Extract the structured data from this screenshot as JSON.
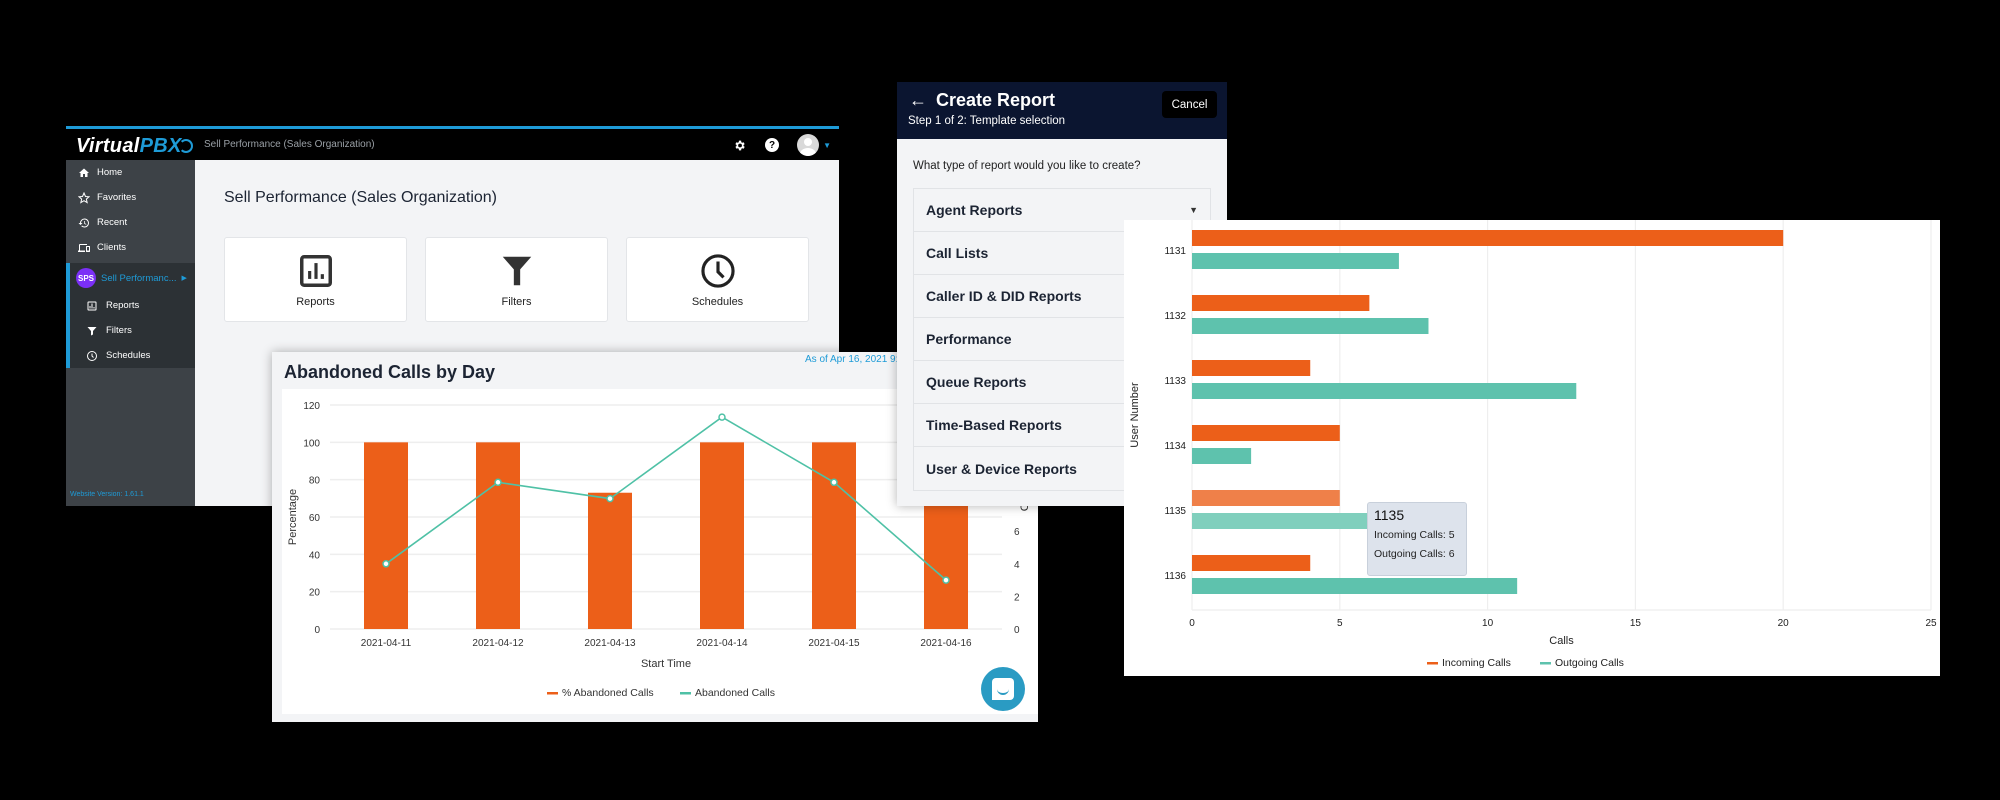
{
  "app": {
    "logo_text_1": "Virtual",
    "logo_text_2": "PBX",
    "topbar_title": "Sell Performance (Sales Organization)",
    "icons": [
      "gear-icon",
      "help-icon",
      "avatar",
      "caret-down-icon"
    ],
    "accent_color": "#1e9bd7",
    "sidebar": {
      "items": [
        {
          "label": "Home",
          "icon": "home-icon"
        },
        {
          "label": "Favorites",
          "icon": "star-icon"
        },
        {
          "label": "Recent",
          "icon": "history-icon"
        },
        {
          "label": "Clients",
          "icon": "devices-icon"
        }
      ],
      "org": {
        "badge": "SPS",
        "label": "Sell Performanc...",
        "badge_color": "#7b2ff7"
      },
      "sub_items": [
        {
          "label": "Reports",
          "icon": "bar-chart-icon"
        },
        {
          "label": "Filters",
          "icon": "filter-icon"
        },
        {
          "label": "Schedules",
          "icon": "clock-icon"
        }
      ],
      "version": "Website Version: 1.61.1"
    },
    "main": {
      "title": "Sell Performance (Sales Organization)",
      "tiles": [
        {
          "label": "Reports",
          "icon": "bar-chart-icon"
        },
        {
          "label": "Filters",
          "icon": "filter-icon"
        },
        {
          "label": "Schedules",
          "icon": "clock-icon"
        }
      ]
    }
  },
  "abandoned": {
    "title": "Abandoned Calls by Day",
    "as_of": "As of Apr 16, 2021 9:5"
  },
  "create_report": {
    "title": "Create Report",
    "step": "Step 1 of 2: Template selection",
    "cancel_label": "Cancel",
    "question": "What type of report would you like to create?",
    "items": [
      "Agent Reports",
      "Call Lists",
      "Caller ID & DID Reports",
      "Performance",
      "Queue Reports",
      "Time-Based Reports",
      "User & Device Reports"
    ]
  },
  "user_chart": {
    "tooltip": {
      "title": "1135",
      "incoming": "Incoming Calls: 5",
      "outgoing": "Outgoing Calls: 6"
    }
  },
  "chart_data": [
    {
      "type": "bar",
      "title": "Abandoned Calls by Day",
      "categories": [
        "2021-04-11",
        "2021-04-12",
        "2021-04-13",
        "2021-04-14",
        "2021-04-15",
        "2021-04-16"
      ],
      "series": [
        {
          "name": "% Abandoned Calls",
          "type": "bar",
          "color": "#ec5f19",
          "axis": "left",
          "values": [
            100,
            100,
            73,
            100,
            100,
            100
          ]
        },
        {
          "name": "Abandoned Calls",
          "type": "line",
          "color": "#4fc1a6",
          "axis": "right",
          "values": [
            4,
            9,
            8,
            13,
            9,
            3
          ]
        }
      ],
      "xlabel": "Start Time",
      "ylabel": "Percentage",
      "y2label": "Calls",
      "ylim": [
        0,
        120
      ],
      "yticks": [
        0,
        20,
        40,
        60,
        80,
        100,
        120
      ],
      "y2ticks": [
        0,
        2,
        4,
        6
      ],
      "legend_position": "bottom"
    },
    {
      "type": "bar",
      "orientation": "horizontal",
      "categories": [
        "1131",
        "1132",
        "1133",
        "1134",
        "1135",
        "1136"
      ],
      "series": [
        {
          "name": "Incoming Calls",
          "color": "#ec5f19",
          "values": [
            20,
            6,
            4,
            5,
            5,
            4
          ]
        },
        {
          "name": "Outgoing Calls",
          "color": "#5ec2ad",
          "values": [
            7,
            8,
            13,
            2,
            6,
            11
          ]
        }
      ],
      "xlabel": "Calls",
      "ylabel": "User Number",
      "xlim": [
        0,
        25
      ],
      "xticks": [
        0,
        5,
        10,
        15,
        20,
        25
      ],
      "legend_position": "bottom"
    }
  ]
}
